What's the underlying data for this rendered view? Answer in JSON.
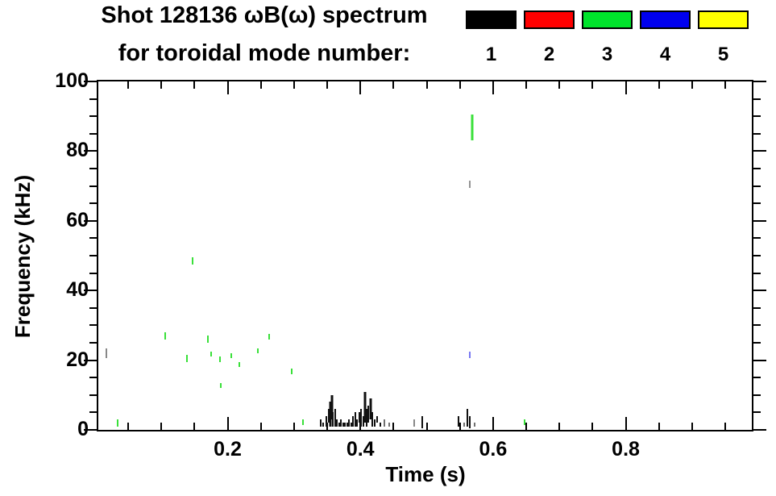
{
  "header": {
    "title_line1": "Shot 128136 ωB(ω) spectrum",
    "title_line2": "for toroidal mode number:"
  },
  "chart_data": {
    "type": "scatter",
    "title": "Shot 128136 ωB(ω) spectrum",
    "subtitle": "for toroidal mode number:",
    "xlabel": "Time (s)",
    "ylabel": "Frequency (kHz)",
    "xlim": [
      0.005,
      0.99
    ],
    "ylim": [
      0,
      100
    ],
    "x_major_ticks": [
      0.2,
      0.4,
      0.6,
      0.8
    ],
    "x_minor_step": 0.05,
    "y_major_ticks": [
      0,
      20,
      40,
      60,
      80,
      100
    ],
    "y_minor_step": 5,
    "grid": false,
    "legend_position": "top-right",
    "point_style": "vertical-streak",
    "point_note": "each point is [time_s, freq_low_kHz, freq_high_kHz, optional_opacity]",
    "series": [
      {
        "name": "toroidal mode 1",
        "legend_label": "1",
        "color": "#000000",
        "point_color": "#111111",
        "points": [
          [
            0.017,
            20.5,
            23.5,
            0.5
          ],
          [
            0.34,
            1,
            3
          ],
          [
            0.344,
            1,
            2
          ],
          [
            0.349,
            1,
            4
          ],
          [
            0.352,
            2,
            6
          ],
          [
            0.355,
            1,
            8
          ],
          [
            0.357,
            3,
            10
          ],
          [
            0.359,
            1,
            5
          ],
          [
            0.362,
            1,
            6
          ],
          [
            0.365,
            1,
            3
          ],
          [
            0.368,
            1,
            2
          ],
          [
            0.371,
            1,
            3
          ],
          [
            0.374,
            1,
            2
          ],
          [
            0.377,
            1,
            2
          ],
          [
            0.38,
            1,
            2
          ],
          [
            0.383,
            1,
            3
          ],
          [
            0.386,
            1,
            2
          ],
          [
            0.389,
            1,
            4
          ],
          [
            0.392,
            1,
            5
          ],
          [
            0.395,
            1,
            3
          ],
          [
            0.398,
            2,
            5
          ],
          [
            0.401,
            1,
            6
          ],
          [
            0.404,
            1,
            4
          ],
          [
            0.407,
            2,
            11
          ],
          [
            0.41,
            1,
            6
          ],
          [
            0.412,
            2,
            7
          ],
          [
            0.415,
            3,
            9
          ],
          [
            0.418,
            1,
            5
          ],
          [
            0.421,
            1,
            3
          ],
          [
            0.425,
            2,
            4
          ],
          [
            0.43,
            1,
            2
          ],
          [
            0.436,
            1,
            3,
            0.6
          ],
          [
            0.443,
            1,
            2,
            0.6
          ],
          [
            0.481,
            1,
            3,
            0.5
          ],
          [
            0.493,
            0.5,
            4
          ],
          [
            0.548,
            1,
            4
          ],
          [
            0.556,
            1,
            2,
            0.6
          ],
          [
            0.561,
            1,
            6
          ],
          [
            0.565,
            0.5,
            4
          ],
          [
            0.572,
            1,
            2,
            0.6
          ],
          [
            0.565,
            69.5,
            71.5,
            0.45
          ]
        ]
      },
      {
        "name": "toroidal mode 2",
        "legend_label": "2",
        "color": "#ff0000",
        "point_color": "#ff0000",
        "points": []
      },
      {
        "name": "toroidal mode 3",
        "legend_label": "3",
        "color": "#00e42c",
        "point_color": "#3ae03a",
        "points": [
          [
            0.034,
            1,
            3
          ],
          [
            0.106,
            26,
            28
          ],
          [
            0.139,
            19.5,
            21.5
          ],
          [
            0.147,
            47.5,
            49.5
          ],
          [
            0.17,
            25,
            27
          ],
          [
            0.175,
            21,
            22.5
          ],
          [
            0.188,
            19.5,
            21
          ],
          [
            0.19,
            12,
            13.5
          ],
          [
            0.205,
            20.5,
            22
          ],
          [
            0.218,
            18,
            19.5
          ],
          [
            0.245,
            22,
            23.5
          ],
          [
            0.262,
            26,
            27.5
          ],
          [
            0.296,
            16,
            17.5
          ],
          [
            0.313,
            1.5,
            3
          ],
          [
            0.569,
            83,
            90.5
          ],
          [
            0.647,
            1.5,
            3
          ]
        ]
      },
      {
        "name": "toroidal mode 4",
        "legend_label": "4",
        "color": "#0000ee",
        "point_color": "#7878f2",
        "points": [
          [
            0.565,
            20.5,
            22.5
          ]
        ]
      },
      {
        "name": "toroidal mode 5",
        "legend_label": "5",
        "color": "#ffff00",
        "point_color": "#ffff00",
        "points": []
      }
    ]
  }
}
